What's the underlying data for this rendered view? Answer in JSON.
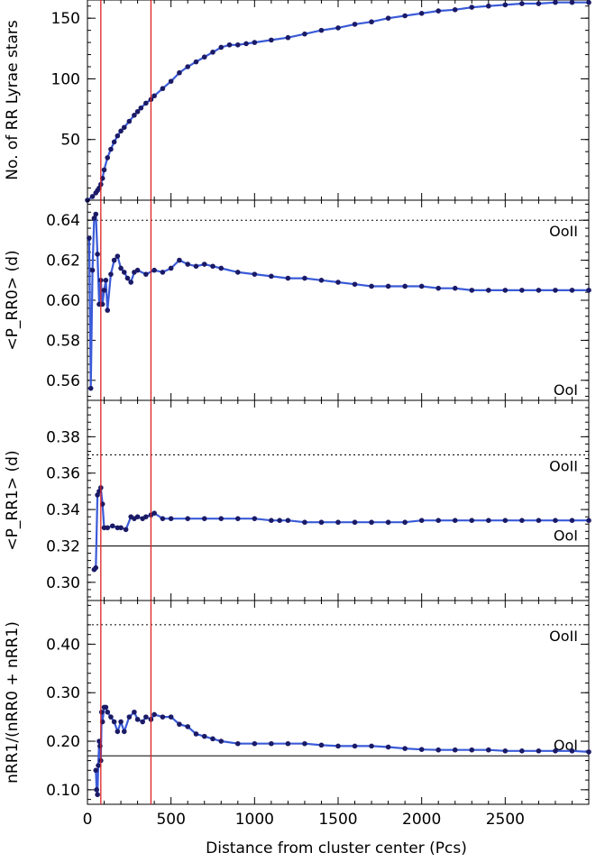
{
  "chart_data": [
    {
      "type": "scatter",
      "ylabel": "No. of RR Lyrae stars",
      "xlim": [
        0,
        3000
      ],
      "ylim": [
        0,
        165
      ],
      "yticks": [
        50,
        100,
        150
      ],
      "vlines": [
        80,
        380
      ],
      "hlines": [],
      "series": [
        {
          "x": [
            0,
            30,
            50,
            60,
            70,
            80,
            90,
            100,
            120,
            140,
            160,
            180,
            200,
            220,
            250,
            280,
            300,
            320,
            350,
            380,
            400,
            450,
            500,
            550,
            600,
            650,
            700,
            750,
            800,
            850,
            900,
            950,
            1000,
            1100,
            1200,
            1300,
            1400,
            1500,
            1600,
            1700,
            1800,
            1900,
            2000,
            2100,
            2200,
            2300,
            2400,
            2500,
            2600,
            2700,
            2800,
            2900,
            3000
          ],
          "y": [
            0,
            3,
            6,
            8,
            10,
            13,
            18,
            25,
            35,
            42,
            48,
            53,
            57,
            60,
            65,
            70,
            73,
            76,
            80,
            83,
            86,
            92,
            98,
            105,
            110,
            114,
            118,
            122,
            126,
            128,
            128,
            129,
            130,
            132,
            134,
            137,
            140,
            142,
            145,
            147,
            150,
            152,
            154,
            156,
            157,
            159,
            160,
            161,
            162,
            162,
            163,
            163,
            163
          ]
        }
      ]
    },
    {
      "type": "scatter",
      "ylabel": "<P_RR0> (d)",
      "xlim": [
        0,
        3000
      ],
      "ylim": [
        0.55,
        0.65
      ],
      "yticks": [
        0.56,
        0.58,
        0.6,
        0.62,
        0.64
      ],
      "vlines": [
        80,
        380
      ],
      "hlines": [
        {
          "y": 0.64,
          "style": "dotted",
          "label": "OoII"
        },
        {
          "y": 0.55,
          "style": "solid",
          "label": "OoI"
        }
      ],
      "series": [
        {
          "x": [
            10,
            20,
            30,
            40,
            50,
            60,
            70,
            80,
            90,
            100,
            110,
            120,
            140,
            160,
            180,
            200,
            220,
            240,
            260,
            280,
            300,
            350,
            400,
            450,
            500,
            550,
            600,
            650,
            700,
            750,
            800,
            900,
            1000,
            1100,
            1200,
            1300,
            1400,
            1500,
            1600,
            1700,
            1800,
            1900,
            2000,
            2100,
            2200,
            2300,
            2400,
            2500,
            2600,
            2700,
            2800,
            2900,
            3000
          ],
          "y": [
            0.631,
            0.556,
            0.615,
            0.641,
            0.643,
            0.623,
            0.598,
            0.61,
            0.598,
            0.605,
            0.61,
            0.595,
            0.613,
            0.62,
            0.622,
            0.616,
            0.614,
            0.611,
            0.609,
            0.614,
            0.615,
            0.613,
            0.615,
            0.614,
            0.616,
            0.62,
            0.618,
            0.617,
            0.618,
            0.617,
            0.616,
            0.614,
            0.613,
            0.612,
            0.611,
            0.611,
            0.61,
            0.609,
            0.608,
            0.607,
            0.607,
            0.607,
            0.607,
            0.606,
            0.606,
            0.605,
            0.605,
            0.605,
            0.605,
            0.605,
            0.605,
            0.605,
            0.605
          ]
        }
      ]
    },
    {
      "type": "scatter",
      "ylabel": "<P_RR1> (d)",
      "xlim": [
        0,
        3000
      ],
      "ylim": [
        0.29,
        0.4
      ],
      "yticks": [
        0.3,
        0.32,
        0.34,
        0.36,
        0.38
      ],
      "vlines": [
        80,
        380
      ],
      "hlines": [
        {
          "y": 0.37,
          "style": "dotted",
          "label": "OoII"
        },
        {
          "y": 0.32,
          "style": "solid",
          "label": "OoI"
        }
      ],
      "series": [
        {
          "x": [
            40,
            50,
            60,
            70,
            80,
            90,
            100,
            120,
            150,
            180,
            200,
            230,
            260,
            280,
            300,
            330,
            350,
            380,
            400,
            450,
            500,
            600,
            700,
            800,
            900,
            1000,
            1100,
            1150,
            1200,
            1300,
            1400,
            1500,
            1600,
            1700,
            1800,
            1900,
            2000,
            2100,
            2200,
            2300,
            2400,
            2500,
            2600,
            2700,
            2800,
            2900,
            3000
          ],
          "y": [
            0.307,
            0.308,
            0.348,
            0.35,
            0.352,
            0.343,
            0.33,
            0.33,
            0.331,
            0.33,
            0.33,
            0.329,
            0.336,
            0.335,
            0.336,
            0.335,
            0.336,
            0.337,
            0.338,
            0.335,
            0.335,
            0.335,
            0.335,
            0.335,
            0.335,
            0.335,
            0.334,
            0.334,
            0.334,
            0.333,
            0.333,
            0.333,
            0.333,
            0.333,
            0.333,
            0.333,
            0.334,
            0.334,
            0.334,
            0.334,
            0.334,
            0.334,
            0.334,
            0.334,
            0.334,
            0.334,
            0.334
          ]
        }
      ]
    },
    {
      "type": "scatter",
      "ylabel": "nRR1/(nRR0 + nRR1)",
      "xlabel": "Distance from cluster center (Pcs)",
      "xlim": [
        0,
        3000
      ],
      "ylim": [
        0.07,
        0.49
      ],
      "yticks": [
        0.1,
        0.2,
        0.3,
        0.4
      ],
      "xticks": [
        0,
        500,
        1000,
        1500,
        2000,
        2500
      ],
      "vlines": [
        80,
        380
      ],
      "hlines": [
        {
          "y": 0.44,
          "style": "dotted",
          "label": "OoII"
        },
        {
          "y": 0.17,
          "style": "solid",
          "label": "OoI"
        }
      ],
      "series": [
        {
          "x": [
            50,
            55,
            60,
            65,
            70,
            75,
            80,
            85,
            90,
            100,
            110,
            120,
            140,
            160,
            180,
            200,
            220,
            250,
            280,
            300,
            330,
            350,
            380,
            400,
            450,
            500,
            550,
            600,
            650,
            700,
            750,
            800,
            900,
            1000,
            1100,
            1200,
            1300,
            1400,
            1500,
            1600,
            1700,
            1800,
            1900,
            2000,
            2100,
            2200,
            2300,
            2400,
            2500,
            2600,
            2700,
            2800,
            2900,
            3000
          ],
          "y": [
            0.14,
            0.1,
            0.09,
            0.15,
            0.2,
            0.19,
            0.16,
            0.26,
            0.24,
            0.27,
            0.27,
            0.26,
            0.25,
            0.24,
            0.22,
            0.24,
            0.22,
            0.25,
            0.26,
            0.245,
            0.24,
            0.25,
            0.245,
            0.255,
            0.25,
            0.25,
            0.235,
            0.23,
            0.215,
            0.21,
            0.205,
            0.2,
            0.195,
            0.195,
            0.195,
            0.195,
            0.195,
            0.192,
            0.19,
            0.19,
            0.19,
            0.188,
            0.185,
            0.183,
            0.182,
            0.182,
            0.182,
            0.182,
            0.18,
            0.18,
            0.18,
            0.18,
            0.18,
            0.178
          ]
        }
      ]
    }
  ],
  "colors": {
    "marker": "#1a1a66",
    "connector": "#3a5bd8",
    "vline": "#dd2222",
    "axis": "#000000"
  }
}
